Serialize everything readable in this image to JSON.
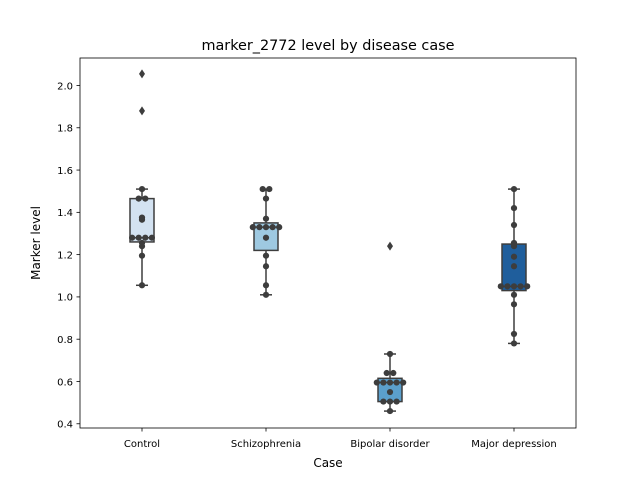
{
  "chart_data": {
    "type": "box",
    "title": "marker_2772 level by disease case",
    "xlabel": "Case",
    "ylabel": "Marker level",
    "ylim": [
      0.38,
      2.13
    ],
    "yticks": [
      0.4,
      0.6,
      0.8,
      1.0,
      1.2,
      1.4,
      1.6,
      1.8,
      2.0
    ],
    "ytick_labels": [
      "0.4",
      "0.6",
      "0.8",
      "1.0",
      "1.2",
      "1.4",
      "1.6",
      "1.8",
      "2.0"
    ],
    "grid": false,
    "categories": [
      "Control",
      "Schizophrenia",
      "Bipolar disorder",
      "Major depression"
    ],
    "colors": [
      "#d3e2f1",
      "#9ec9e1",
      "#5b9fcc",
      "#1f5e9c"
    ],
    "boxes": [
      {
        "category": "Control",
        "whisker_low": 1.055,
        "q1": 1.26,
        "median": 1.28,
        "q3": 1.465,
        "whisker_high": 1.51,
        "outliers": [
          1.88,
          2.055
        ]
      },
      {
        "category": "Schizophrenia",
        "whisker_low": 1.01,
        "q1": 1.22,
        "median": 1.33,
        "q3": 1.35,
        "whisker_high": 1.51,
        "outliers": []
      },
      {
        "category": "Bipolar disorder",
        "whisker_low": 0.46,
        "q1": 0.505,
        "median": 0.595,
        "q3": 0.615,
        "whisker_high": 0.73,
        "outliers": [
          1.24
        ]
      },
      {
        "category": "Major depression",
        "whisker_low": 0.78,
        "q1": 1.03,
        "median": 1.05,
        "q3": 1.25,
        "whisker_high": 1.51,
        "outliers": []
      }
    ],
    "points": [
      [
        1.055,
        1.195,
        1.24,
        1.255,
        1.28,
        1.28,
        1.28,
        1.28,
        1.365,
        1.375,
        1.465,
        1.465,
        1.51
      ],
      [
        1.01,
        1.055,
        1.145,
        1.195,
        1.28,
        1.33,
        1.33,
        1.33,
        1.33,
        1.33,
        1.37,
        1.465,
        1.51,
        1.51
      ],
      [
        0.46,
        0.505,
        0.505,
        0.505,
        0.55,
        0.595,
        0.595,
        0.595,
        0.595,
        0.595,
        0.64,
        0.64,
        0.73
      ],
      [
        0.78,
        0.825,
        0.965,
        1.01,
        1.05,
        1.05,
        1.05,
        1.05,
        1.05,
        1.145,
        1.19,
        1.24,
        1.255,
        1.34,
        1.42,
        1.51
      ]
    ]
  }
}
